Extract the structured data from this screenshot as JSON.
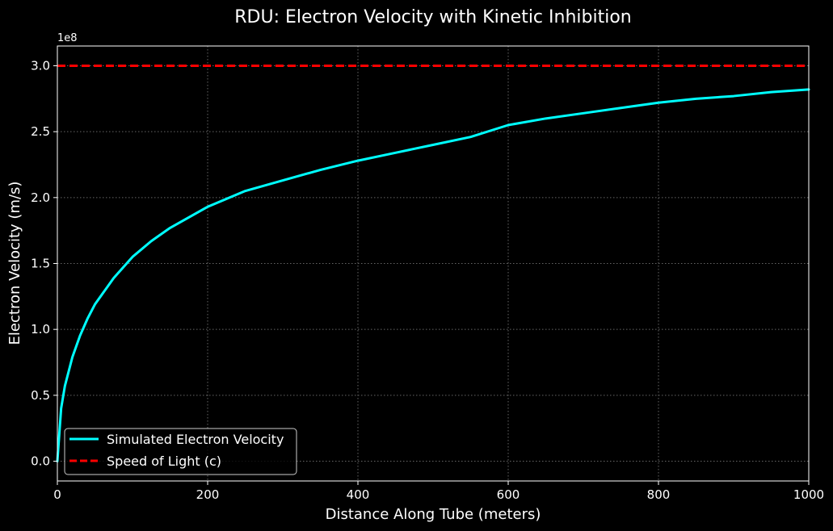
{
  "chart_data": {
    "type": "line",
    "title": "RDU: Electron Velocity with Kinetic Inhibition",
    "xlabel": "Distance Along Tube (meters)",
    "ylabel": "Electron Velocity (m/s)",
    "y_offset_label": "1e8",
    "xlim": [
      0,
      1000
    ],
    "ylim": [
      -0.15,
      3.15
    ],
    "x_ticks": [
      0,
      200,
      400,
      600,
      800,
      1000
    ],
    "x_tick_labels": [
      "0",
      "200",
      "400",
      "600",
      "800",
      "1000"
    ],
    "y_ticks": [
      0.0,
      0.5,
      1.0,
      1.5,
      2.0,
      2.5,
      3.0
    ],
    "y_tick_labels": [
      "0.0",
      "0.5",
      "1.0",
      "1.5",
      "2.0",
      "2.5",
      "3.0"
    ],
    "grid": true,
    "legend_position": "bottom-left",
    "series": [
      {
        "name": "Simulated Electron Velocity",
        "color": "#00ffff",
        "style": "solid",
        "x": [
          0,
          5,
          10,
          20,
          30,
          40,
          50,
          75,
          100,
          125,
          150,
          200,
          250,
          300,
          350,
          400,
          450,
          500,
          550,
          600,
          650,
          700,
          750,
          800,
          850,
          900,
          950,
          1000
        ],
        "values": [
          0.0,
          0.4,
          0.57,
          0.79,
          0.95,
          1.08,
          1.19,
          1.39,
          1.55,
          1.67,
          1.77,
          1.93,
          2.05,
          2.13,
          2.21,
          2.28,
          2.34,
          2.4,
          2.46,
          2.55,
          2.6,
          2.64,
          2.68,
          2.72,
          2.75,
          2.77,
          2.8,
          2.82
        ]
      },
      {
        "name": "Speed of Light (c)",
        "color": "#ff0000",
        "style": "dashed",
        "x": [
          0,
          1000
        ],
        "values": [
          3.0,
          3.0
        ]
      }
    ]
  }
}
